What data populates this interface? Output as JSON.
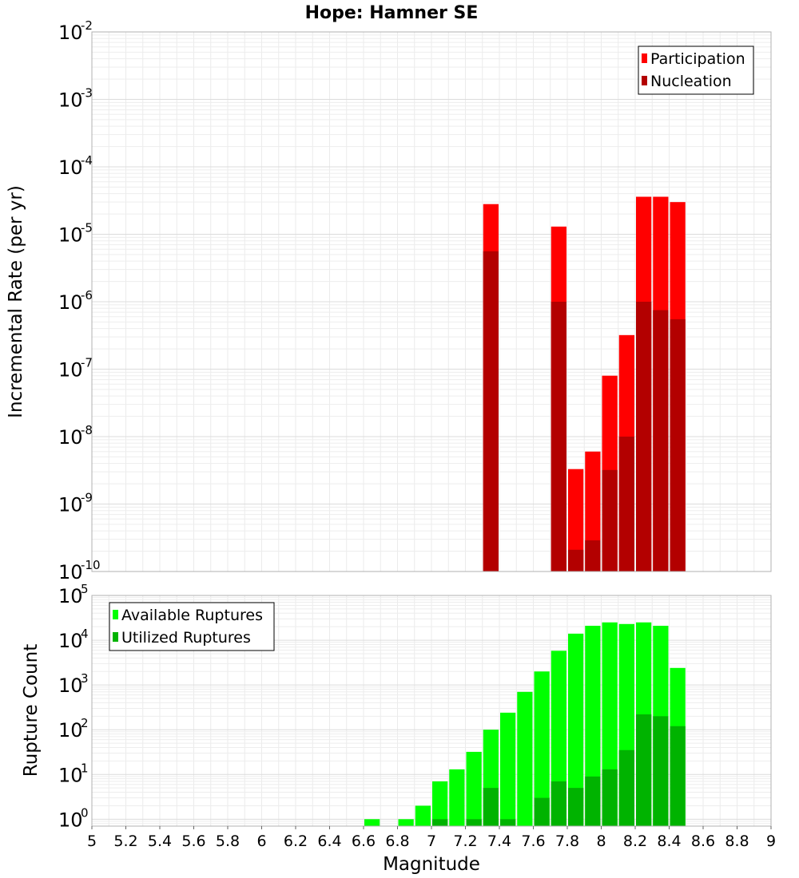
{
  "chart_data": [
    {
      "type": "bar",
      "title": "Hope: Hamner SE",
      "xlabel": "",
      "ylabel": "Incremental Rate (per yr)",
      "yscale": "log",
      "xlim": [
        5,
        9
      ],
      "ylim": [
        1e-10,
        0.01
      ],
      "y_ticks": [
        {
          "base": "10",
          "exp": "-10",
          "value": 1e-10
        },
        {
          "base": "10",
          "exp": "-9",
          "value": 1e-09
        },
        {
          "base": "10",
          "exp": "-8",
          "value": 1e-08
        },
        {
          "base": "10",
          "exp": "-7",
          "value": 1e-07
        },
        {
          "base": "10",
          "exp": "-6",
          "value": 1e-06
        },
        {
          "base": "10",
          "exp": "-5",
          "value": 1e-05
        },
        {
          "base": "10",
          "exp": "-4",
          "value": 0.0001
        },
        {
          "base": "10",
          "exp": "-3",
          "value": 0.001
        },
        {
          "base": "10",
          "exp": "-2",
          "value": 0.01
        }
      ],
      "grid": true,
      "legend_position": "top-right",
      "series": [
        {
          "name": "Participation",
          "color": "#ff0000",
          "x": [
            7.35,
            7.75,
            7.85,
            7.95,
            8.05,
            8.15,
            8.25,
            8.35,
            8.45
          ],
          "values": [
            2.8e-05,
            1.3e-05,
            3.3e-09,
            6e-09,
            8e-08,
            3.2e-07,
            3.6e-05,
            3.6e-05,
            3e-05
          ]
        },
        {
          "name": "Nucleation",
          "color": "#b30000",
          "x": [
            7.35,
            7.75,
            7.85,
            7.95,
            8.05,
            8.15,
            8.25,
            8.35,
            8.45
          ],
          "values": [
            5.6e-06,
            1e-06,
            2.1e-10,
            2.9e-10,
            3.2e-09,
            1e-08,
            1e-06,
            7.5e-07,
            5.5e-07
          ]
        }
      ]
    },
    {
      "type": "bar",
      "title": "",
      "xlabel": "Magnitude",
      "ylabel": "Rupture Count",
      "yscale": "log",
      "xlim": [
        5,
        9
      ],
      "ylim": [
        0.7,
        100000.0
      ],
      "x_ticks": [
        "5",
        "5.2",
        "5.4",
        "5.6",
        "5.8",
        "6",
        "6.2",
        "6.4",
        "6.6",
        "6.8",
        "7",
        "7.2",
        "7.4",
        "7.6",
        "7.8",
        "8",
        "8.2",
        "8.4",
        "8.6",
        "8.8",
        "9"
      ],
      "y_ticks": [
        {
          "base": "10",
          "exp": "0",
          "value": 1
        },
        {
          "base": "10",
          "exp": "1",
          "value": 10
        },
        {
          "base": "10",
          "exp": "2",
          "value": 100
        },
        {
          "base": "10",
          "exp": "3",
          "value": 1000
        },
        {
          "base": "10",
          "exp": "4",
          "value": 10000
        },
        {
          "base": "10",
          "exp": "5",
          "value": 100000
        }
      ],
      "grid": true,
      "legend_position": "top-left",
      "series": [
        {
          "name": "Available Ruptures",
          "color": "#00ff00",
          "x": [
            6.65,
            6.85,
            6.95,
            7.05,
            7.15,
            7.25,
            7.35,
            7.45,
            7.55,
            7.65,
            7.75,
            7.85,
            7.95,
            8.05,
            8.15,
            8.25,
            8.35,
            8.45
          ],
          "values": [
            1,
            1,
            2,
            7,
            13,
            32,
            100,
            240,
            700,
            2000,
            5800,
            14000,
            21000,
            25000,
            23000,
            25000,
            21000,
            2400
          ]
        },
        {
          "name": "Utilized Ruptures",
          "color": "#00b300",
          "x": [
            7.05,
            7.25,
            7.35,
            7.45,
            7.65,
            7.75,
            7.85,
            7.95,
            8.05,
            8.15,
            8.25,
            8.35,
            8.45
          ],
          "values": [
            1,
            1,
            5,
            1,
            3,
            7,
            5,
            9,
            13,
            35,
            220,
            200,
            120
          ]
        }
      ]
    }
  ]
}
